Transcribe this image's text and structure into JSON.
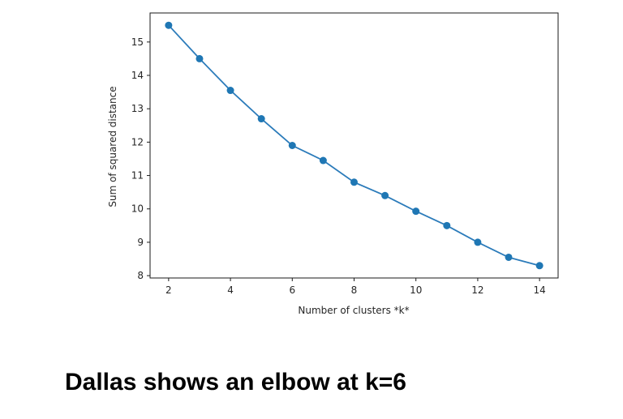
{
  "chart_data": {
    "type": "line",
    "x": [
      2,
      3,
      4,
      5,
      6,
      7,
      8,
      9,
      10,
      11,
      12,
      13,
      14
    ],
    "series": [
      {
        "values": [
          15.5,
          14.5,
          13.55,
          12.7,
          11.9,
          11.45,
          10.8,
          10.4,
          9.93,
          9.5,
          9.0,
          8.55,
          8.3
        ]
      }
    ],
    "xlabel": "Number of clusters *k*",
    "ylabel": "Sum of squared distance",
    "xticks": [
      2,
      4,
      6,
      8,
      10,
      12,
      14
    ],
    "yticks": [
      8,
      9,
      10,
      11,
      12,
      13,
      14,
      15
    ],
    "xlim": [
      1.4,
      14.6
    ],
    "ylim": [
      7.93,
      15.87
    ],
    "grid": false,
    "markers": true,
    "line_color": "#2b7bba",
    "marker_color": "#1f77b4"
  },
  "caption": "Dallas shows an elbow at k=6"
}
